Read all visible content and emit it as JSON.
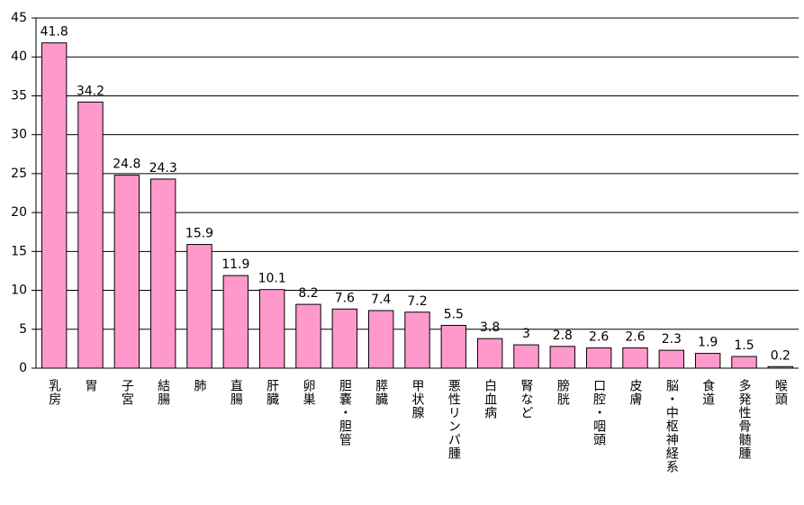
{
  "chart_data": {
    "type": "bar",
    "categories": [
      "乳房",
      "胃",
      "子宮",
      "結腸",
      "肺",
      "直腸",
      "肝臓",
      "卵巣",
      "胆嚢・胆管",
      "膵臓",
      "甲状腺",
      "悪性リンパ腫",
      "白血病",
      "腎など",
      "膀胱",
      "口腔・咽頭",
      "皮膚",
      "脳・中枢神経系",
      "食道",
      "多発性骨髄腫",
      "喉頭"
    ],
    "values": [
      41.8,
      34.2,
      24.8,
      24.3,
      15.9,
      11.9,
      10.1,
      8.2,
      7.6,
      7.4,
      7.2,
      5.5,
      3.8,
      3,
      2.8,
      2.6,
      2.6,
      2.3,
      1.9,
      1.5,
      0.2
    ],
    "color": "#ff99cc",
    "ylim": [
      0,
      45
    ],
    "yticks": [
      0,
      5,
      10,
      15,
      20,
      25,
      30,
      35,
      40,
      45
    ],
    "grid": true
  }
}
